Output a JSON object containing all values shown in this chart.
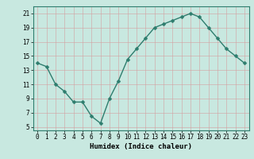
{
  "x": [
    0,
    1,
    2,
    3,
    4,
    5,
    6,
    7,
    8,
    9,
    10,
    11,
    12,
    13,
    14,
    15,
    16,
    17,
    18,
    19,
    20,
    21,
    22,
    23
  ],
  "y": [
    14.0,
    13.5,
    11.0,
    10.0,
    8.5,
    8.5,
    6.5,
    5.5,
    9.0,
    11.5,
    14.5,
    16.0,
    17.5,
    19.0,
    19.5,
    20.0,
    20.5,
    21.0,
    20.5,
    19.0,
    17.5,
    16.0,
    15.0,
    14.0
  ],
  "xlabel": "Humidex (Indice chaleur)",
  "xlim": [
    -0.5,
    23.5
  ],
  "ylim": [
    4.5,
    22.0
  ],
  "yticks": [
    5,
    7,
    9,
    11,
    13,
    15,
    17,
    19,
    21
  ],
  "xticks": [
    0,
    1,
    2,
    3,
    4,
    5,
    6,
    7,
    8,
    9,
    10,
    11,
    12,
    13,
    14,
    15,
    16,
    17,
    18,
    19,
    20,
    21,
    22,
    23
  ],
  "line_color": "#2e7d6e",
  "marker_color": "#2e7d6e",
  "bg_color": "#c8e8e0",
  "grid_color": "#b0ccc8",
  "label_fontsize": 6.5,
  "tick_fontsize": 5.5,
  "marker_size": 2.5,
  "line_width": 1.0
}
